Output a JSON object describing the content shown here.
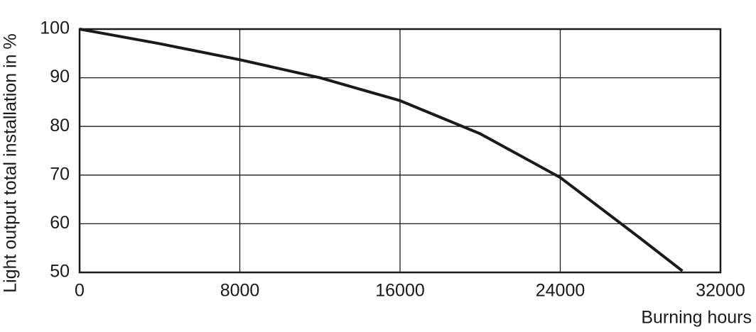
{
  "chart_data": {
    "type": "line",
    "y_label": "Light output total installation in %",
    "x_label": "Burning hours",
    "x": [
      0,
      4000,
      8000,
      12000,
      16000,
      20000,
      24000,
      28000,
      30100
    ],
    "series": [
      {
        "color": "#1a1a1a",
        "values": [
          100,
          97,
          93.7,
          90,
          85.3,
          78.5,
          69.5,
          57,
          50.3
        ]
      }
    ],
    "xlim": [
      0,
      32000
    ],
    "xticks": [
      0,
      8000,
      16000,
      24000,
      32000
    ],
    "ylim": [
      50,
      100
    ],
    "yticks": [
      50,
      60,
      70,
      80,
      90,
      100
    ],
    "grid": true
  }
}
